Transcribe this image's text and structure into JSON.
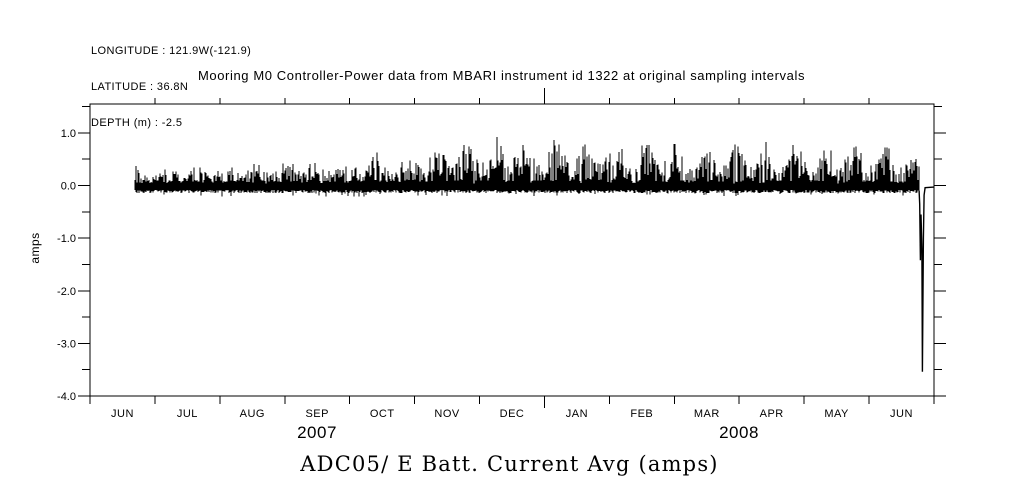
{
  "header": {
    "lines": [
      "LONGITUDE : 121.9W(-121.9)",
      "LATITUDE : 36.8N",
      "DEPTH (m) : -2.5"
    ]
  },
  "chart_data": {
    "type": "line",
    "title": "Mooring M0 Controller-Power data from MBARI instrument id 1322 at original sampling intervals",
    "footer_title": "ADC05/ E Batt. Current Avg (amps)",
    "ylabel": "amps",
    "xlabel": "",
    "grid": false,
    "frame": true,
    "colors": {
      "line": "#000000",
      "background": "#ffffff",
      "text": "#000000"
    },
    "x_axis": {
      "start": "2007-06-01",
      "end": "2008-07-01",
      "month_labels": [
        "JUN",
        "JUL",
        "AUG",
        "SEP",
        "OCT",
        "NOV",
        "DEC",
        "JAN",
        "FEB",
        "MAR",
        "APR",
        "MAY",
        "JUN"
      ],
      "year_labels": [
        "2007",
        "2008"
      ],
      "year_tick_month_index": 7,
      "months_total": 13
    },
    "y_axis": {
      "min": -4.0,
      "max": 1.55,
      "major_tick_values": [
        1.0,
        0.0,
        -1.0,
        -2.0,
        -3.0,
        -4.0
      ],
      "major_tick_labels": [
        "1.0",
        "0.0",
        "-1.0",
        "-2.0",
        "-3.0",
        "-4.0"
      ],
      "minor_tick_step": 0.5
    },
    "series": [
      {
        "name": "E Batt. Current Avg (amps)",
        "style": "dense 1px vertical spikes at original sampling intervals",
        "baseline_band_amps": [
          -0.12,
          0.07
        ],
        "data_start_month_offset": 0.69,
        "data_end_month_offset": 12.77,
        "max_peak_amps": 1.05,
        "fortnightly_modulation_period_days": 14,
        "peak_envelope_month_amps": [
          [
            0.69,
            0.38
          ],
          [
            1.2,
            0.37
          ],
          [
            1.8,
            0.41
          ],
          [
            2.4,
            0.44
          ],
          [
            3.0,
            0.5
          ],
          [
            3.6,
            0.53
          ],
          [
            4.2,
            0.58
          ],
          [
            4.8,
            0.66
          ],
          [
            5.4,
            0.74
          ],
          [
            6.0,
            0.84
          ],
          [
            6.45,
            1.0
          ],
          [
            6.9,
            0.88
          ],
          [
            7.5,
            0.84
          ],
          [
            8.1,
            0.86
          ],
          [
            8.7,
            0.8
          ],
          [
            9.3,
            0.76
          ],
          [
            9.9,
            0.78
          ],
          [
            10.5,
            0.8
          ],
          [
            11.1,
            0.78
          ],
          [
            11.7,
            0.8
          ],
          [
            12.3,
            0.8
          ],
          [
            12.77,
            0.78
          ]
        ],
        "end_anomaly_month_amps": [
          [
            12.771,
            -0.1
          ],
          [
            12.78,
            -0.35
          ],
          [
            12.791,
            -1.42
          ],
          [
            12.8,
            -0.55
          ],
          [
            12.814,
            -1.2
          ],
          [
            12.822,
            -3.54
          ],
          [
            12.836,
            -1.0
          ],
          [
            12.848,
            -0.18
          ],
          [
            12.863,
            -0.04
          ],
          [
            13.0,
            -0.03
          ]
        ]
      }
    ]
  }
}
